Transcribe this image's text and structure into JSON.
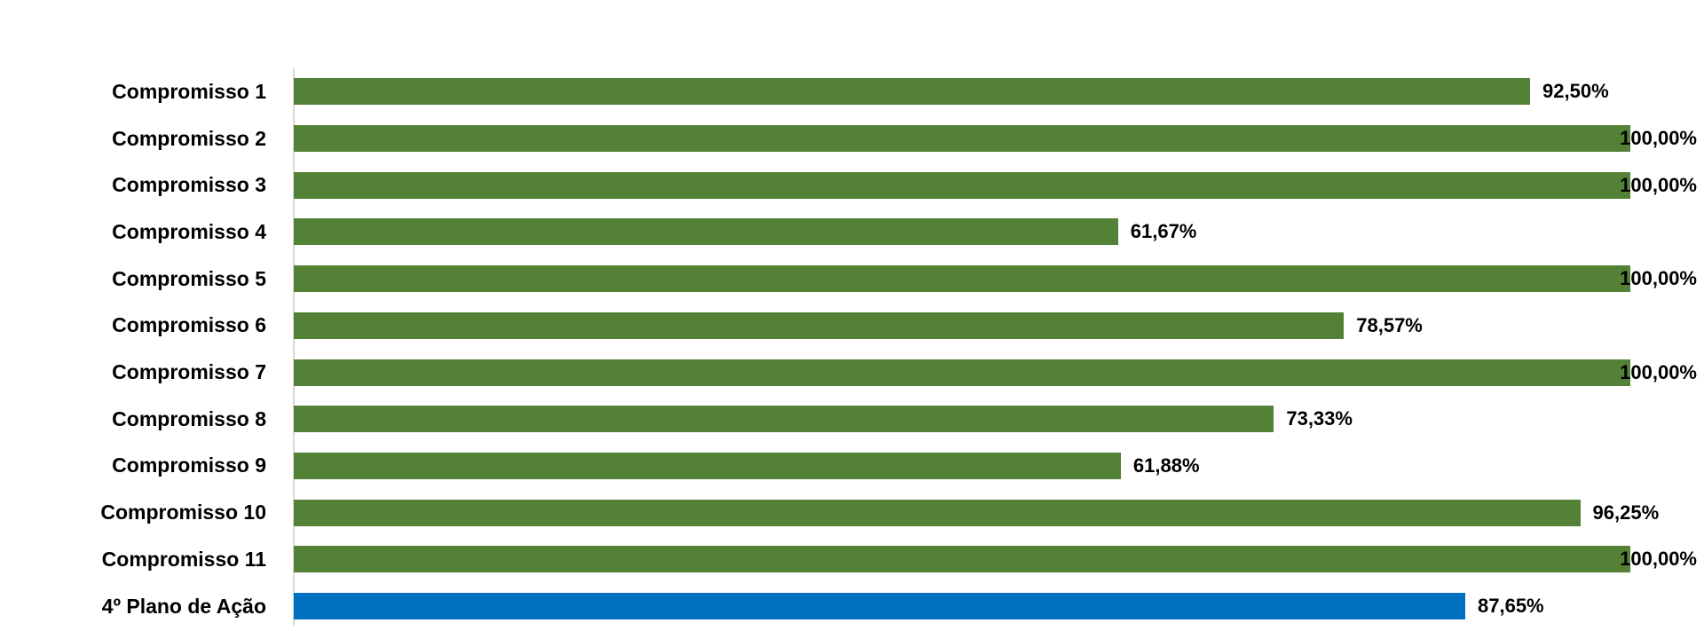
{
  "chart_data": {
    "type": "bar",
    "orientation": "horizontal",
    "title": "",
    "xlabel": "",
    "ylabel": "",
    "xlim": [
      0,
      100
    ],
    "grid": false,
    "legend": false,
    "value_format": "percent, comma decimal separator, 2 decimals",
    "categories": [
      "Compromisso 1",
      "Compromisso 2",
      "Compromisso 3",
      "Compromisso 4",
      "Compromisso 5",
      "Compromisso 6",
      "Compromisso 7",
      "Compromisso 8",
      "Compromisso 9",
      "Compromisso 10",
      "Compromisso 11",
      "4º Plano de Ação"
    ],
    "values": [
      92.5,
      100.0,
      100.0,
      61.67,
      100.0,
      78.57,
      100.0,
      73.33,
      61.88,
      96.25,
      100.0,
      87.65
    ],
    "value_labels": [
      "92,50%",
      "100,00%",
      "100,00%",
      "61,67%",
      "100,00%",
      "78,57%",
      "100,00%",
      "73,33%",
      "61,88%",
      "96,25%",
      "100,00%",
      "87,65%"
    ],
    "highlight_index": 11,
    "colors": {
      "bar_default": "#538135",
      "bar_highlight": "#0070C0",
      "axis_line": "#D9D9D9",
      "label_text": "#000000",
      "background": "#FFFFFF"
    }
  }
}
